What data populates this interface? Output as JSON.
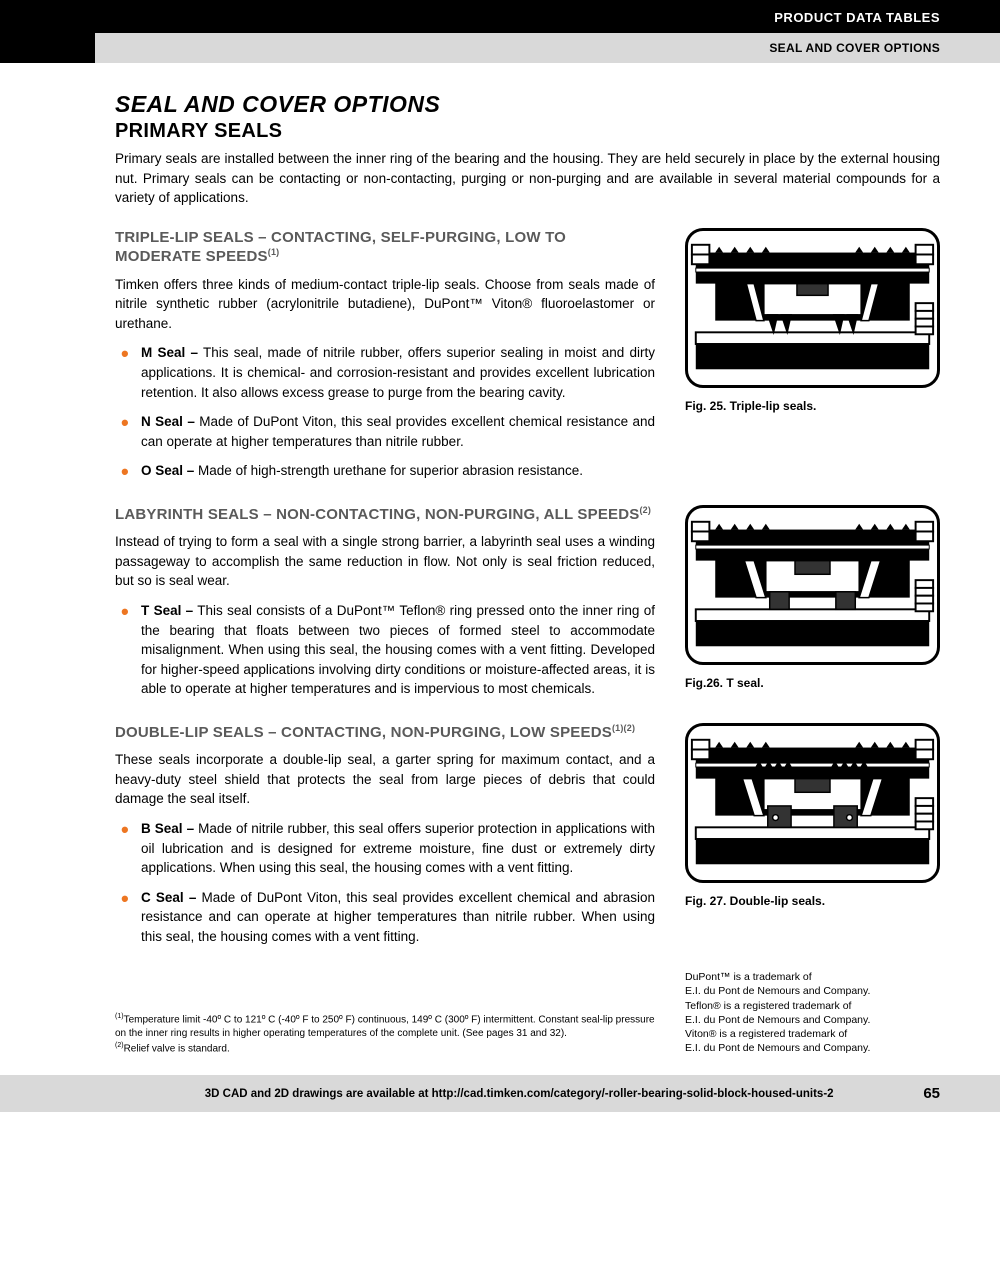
{
  "header": {
    "line1": "PRODUCT DATA TABLES",
    "line2": "SEAL AND COVER OPTIONS"
  },
  "page_title": "SEAL AND COVER OPTIONS",
  "subtitle": "PRIMARY SEALS",
  "intro": "Primary seals are installed between the inner ring of the bearing and the housing. They are held securely in place by the external housing nut. Primary seals can be contacting or non-contacting, purging or non-purging and are available in several material compounds for a variety of applications.",
  "sections": [
    {
      "heading_html": "TRIPLE-LIP SEALS – CONTACTING, SELF-PURGING, LOW TO MODERATE SPEEDS<sup>(1)</sup>",
      "body": "Timken offers three kinds of medium-contact triple-lip seals. Choose from seals made of nitrile synthetic rubber (acrylonitrile butadiene), DuPont™ Viton® fluoroelastomer or urethane.",
      "bullets": [
        "<b>M Seal –</b> This seal, made of nitrile rubber, offers superior sealing in moist and dirty applications. It is chemical- and corrosion-resistant and provides excellent lubrication retention. It also allows excess grease to purge from the bearing cavity.",
        "<b>N Seal –</b> Made of DuPont Viton, this seal provides excellent chemical resistance and can operate at higher temperatures than nitrile rubber.",
        "<b>O Seal –</b> Made of high-strength urethane for superior abrasion resistance."
      ],
      "fig_caption": "Fig. 25. Triple-lip seals.",
      "fig_type": "triple"
    },
    {
      "heading_html": "LABYRINTH SEALS – NON-CONTACTING, NON-PURGING, ALL SPEEDS<sup>(2)</sup>",
      "body": "Instead of trying to form a seal with a single strong barrier, a labyrinth seal uses a winding passageway to accomplish the same reduction in flow. Not only is seal friction reduced, but so is seal wear.",
      "bullets": [
        "<b>T Seal –</b> This seal consists of a DuPont™ Teflon® ring pressed onto the inner ring of the bearing that floats between two pieces of formed steel to accommodate misalignment. When using this seal, the housing comes with a vent fitting. Developed for higher-speed applications involving dirty conditions or moisture-affected areas, it is able to operate at higher temperatures and is impervious to most chemicals."
      ],
      "fig_caption": "Fig.26. T seal.",
      "fig_type": "tseal"
    },
    {
      "heading_html": "DOUBLE-LIP SEALS – CONTACTING, NON-PURGING, LOW SPEEDS<sup>(1)(2)</sup>",
      "body": "These seals incorporate a double-lip seal, a garter spring for maximum contact, and a heavy-duty steel shield that protects the seal from large pieces of debris that could damage the seal itself.",
      "bullets": [
        "<b>B Seal –</b> Made of nitrile rubber, this seal offers superior protection in applications with oil lubrication and is designed for extreme moisture, fine dust or extremely dirty applications. When using this seal, the housing comes with a vent fitting.",
        "<b>C Seal –</b> Made of DuPont Viton, this seal provides excellent chemical and abrasion resistance and can operate at higher temperatures than nitrile rubber. When using this seal, the housing comes with a vent fitting."
      ],
      "fig_caption": "Fig. 27. Double-lip seals.",
      "fig_type": "double"
    }
  ],
  "footnotes": [
    "<sup>(1)</sup>Temperature limit -40º C to 121º C (-40º F to 250º F) continuous, 149º C (300º F) intermittent. Constant seal-lip pressure on the inner ring results in higher operating temperatures of the complete unit. (See pages 31 and 32).",
    "<sup>(2)</sup>Relief valve is standard."
  ],
  "trademark": "DuPont™ is a trademark of<br>E.I. du Pont de Nemours and Company.<br>Teflon® is a registered trademark of<br>E.I. du Pont de Nemours and Company.<br>Viton® is a registered trademark of<br>E.I. du Pont de Nemours and Company.",
  "footer": {
    "text": "3D CAD and 2D drawings are available at http://cad.timken.com/category/-roller-bearing-solid-block-housed-units-2",
    "page": "65"
  },
  "colors": {
    "orange": "#ed7622",
    "grey_heading": "#5a5a5a",
    "header_grey": "#d9d9d9"
  }
}
